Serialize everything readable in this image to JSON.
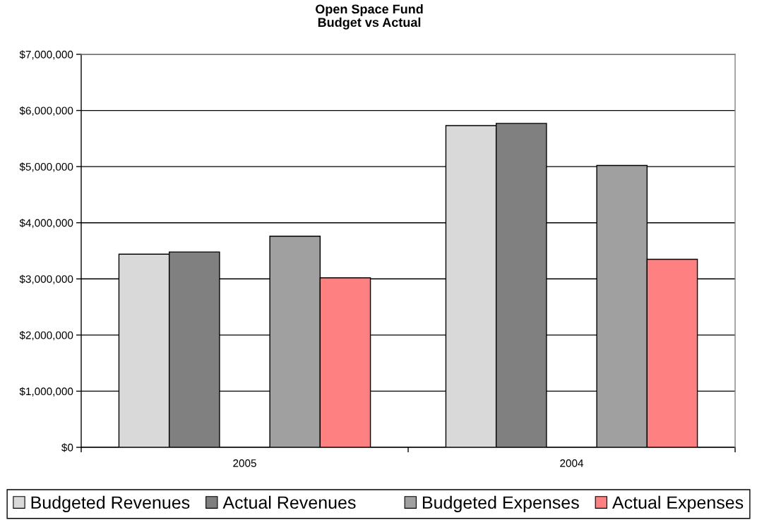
{
  "chart_data": {
    "type": "bar",
    "title": "Open Space Fund\nBudget vs Actual",
    "categories": [
      "2005",
      "2004"
    ],
    "series": [
      {
        "name": "Budgeted Revenues",
        "color": "#d9d9d9",
        "values": [
          3440000,
          5730000
        ]
      },
      {
        "name": "Actual Revenues",
        "color": "#808080",
        "values": [
          3480000,
          5770000
        ]
      },
      {
        "values": [
          null,
          null
        ]
      },
      {
        "name": "Budgeted Expenses",
        "color": "#a0a0a0",
        "values": [
          3760000,
          5020000
        ]
      },
      {
        "name": "Actual Expenses",
        "color": "#ff8080",
        "values": [
          3020000,
          3350000
        ]
      }
    ],
    "ylim": [
      0,
      7000000
    ],
    "yticks": [
      {
        "value": 0,
        "label": "$0"
      },
      {
        "value": 1000000,
        "label": "$1,000,000"
      },
      {
        "value": 2000000,
        "label": "$2,000,000"
      },
      {
        "value": 3000000,
        "label": "$3,000,000"
      },
      {
        "value": 4000000,
        "label": "$4,000,000"
      },
      {
        "value": 5000000,
        "label": "$5,000,000"
      },
      {
        "value": 6000000,
        "label": "$6,000,000"
      },
      {
        "value": 7000000,
        "label": "$7,000,000"
      }
    ],
    "grid": "y",
    "legend": "bottom"
  }
}
